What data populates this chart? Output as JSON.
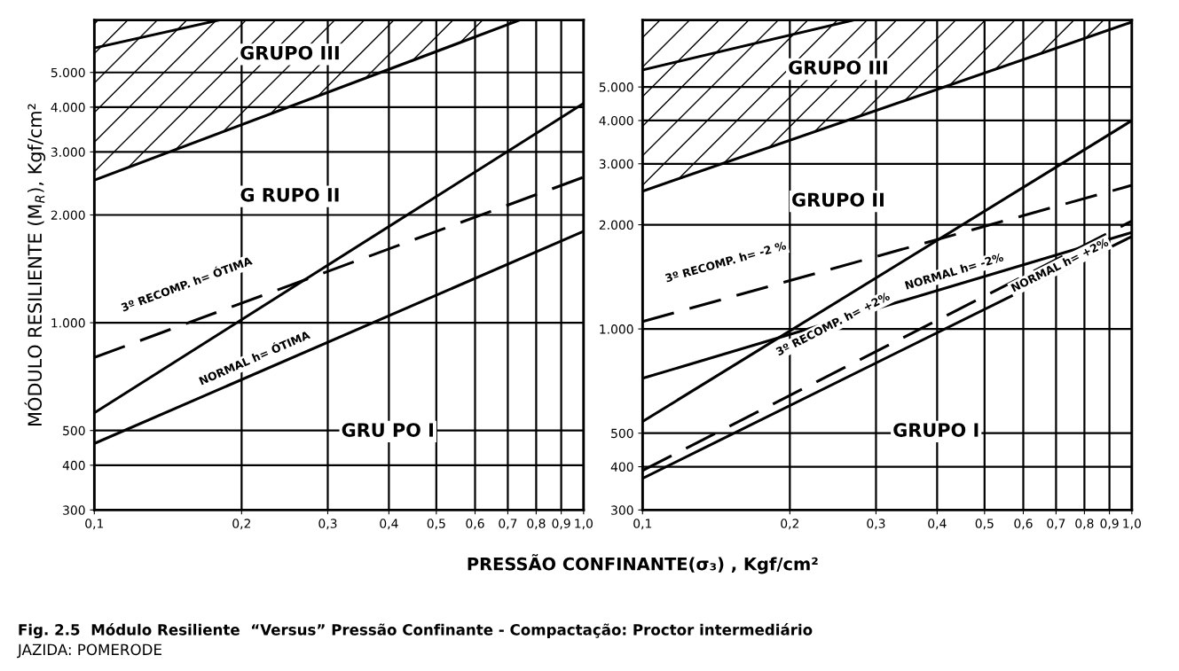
{
  "chart_data": [
    {
      "type": "line",
      "log": "xy",
      "grid": true,
      "ylabel": "MÓDULO RESILIENTE (M$_{R}$), Kgf/cm²",
      "xlim": [
        0.1,
        1.0
      ],
      "ylim": [
        300,
        7000
      ],
      "xticks": [
        {
          "value": 0.1,
          "label": "0,1"
        },
        {
          "value": 0.2,
          "label": "0,2"
        },
        {
          "value": 0.3,
          "label": "0,3"
        },
        {
          "value": 0.4,
          "label": "0,4"
        },
        {
          "value": 0.5,
          "label": "0,5"
        },
        {
          "value": 0.6,
          "label": "0,6"
        },
        {
          "value": 0.7,
          "label": "0,7"
        },
        {
          "value": 0.8,
          "label": "0,8"
        },
        {
          "value": 0.9,
          "label": "0,9"
        },
        {
          "value": 1.0,
          "label": "1,0"
        }
      ],
      "yticks": [
        300,
        400,
        500,
        {
          "value": 1000,
          "label": "1.000"
        },
        {
          "value": 2000,
          "label": "2.000"
        },
        {
          "value": 3000,
          "label": "3.000"
        },
        {
          "value": 4000,
          "label": "4.000"
        },
        {
          "value": 5000,
          "label": "5.000"
        }
      ],
      "series": [
        {
          "color": "#000000",
          "x": [
            0.1,
            0.18
          ],
          "values": [
            5850,
            7000
          ]
        },
        {
          "color": "#000000",
          "x": [
            0.1,
            0.74
          ],
          "values": [
            2500,
            7000
          ],
          "lower": [
            2500,
            7000
          ],
          "upper": [
            7000,
            7000
          ]
        },
        {
          "color": "#000000",
          "x": [
            0.1,
            1.0
          ],
          "values": [
            560,
            4100
          ]
        },
        {
          "color": "#000000",
          "x": [
            0.1,
            1.0
          ],
          "values": [
            800,
            2550
          ],
          "line_style": "dashed"
        },
        {
          "color": "#000000",
          "x": [
            0.1,
            1.0
          ],
          "values": [
            460,
            1800
          ]
        }
      ],
      "annotations": [
        "GRUPO III",
        "G RUPO II",
        "GRU PO I",
        "3º RECOMP. h= ÓTIMA",
        "NORMAL h= ÓTIMA",
        "Fig. 2.5  Módulo Resiliente  “Versus” Pressão Confinante - Compactação: Proctor intermediário",
        "JAZIDA: POMERODE"
      ]
    },
    {
      "type": "line",
      "log": "xy",
      "grid": true,
      "xlabel": "PRESSÃO CONFINANTE(σ₃) , Kgf/cm²",
      "xlim": [
        0.1,
        1.0
      ],
      "ylim": [
        300,
        7800
      ],
      "xticks": [
        {
          "value": 0.1,
          "label": "0,1"
        },
        {
          "value": 0.2,
          "label": "0,2"
        },
        {
          "value": 0.3,
          "label": "0,3"
        },
        {
          "value": 0.4,
          "label": "0,4"
        },
        {
          "value": 0.5,
          "label": "0,5"
        },
        {
          "value": 0.6,
          "label": "0,6"
        },
        {
          "value": 0.7,
          "label": "0,7"
        },
        {
          "value": 0.8,
          "label": "0,8"
        },
        {
          "value": 0.9,
          "label": "0,9"
        },
        {
          "value": 1.0,
          "label": "1,0"
        }
      ],
      "yticks": [
        300,
        400,
        500,
        {
          "value": 1000,
          "label": "1.000"
        },
        {
          "value": 2000,
          "label": "2.000"
        },
        {
          "value": 3000,
          "label": "3.000"
        },
        {
          "value": 4000,
          "label": "4.000"
        },
        {
          "value": 5000,
          "label": "5.000"
        }
      ],
      "series": [
        {
          "color": "#000000",
          "x": [
            0.1,
            0.27
          ],
          "values": [
            5600,
            7800
          ]
        },
        {
          "color": "#000000",
          "x": [
            0.1,
            1.0
          ],
          "values": [
            2500,
            7700
          ],
          "lower": [
            2500,
            7700
          ],
          "upper": [
            7800,
            7800
          ]
        },
        {
          "color": "#000000",
          "x": [
            0.1,
            1.0
          ],
          "values": [
            540,
            4000
          ]
        },
        {
          "color": "#000000",
          "x": [
            0.1,
            1.0
          ],
          "values": [
            1050,
            2600
          ],
          "line_style": "dashed"
        },
        {
          "color": "#000000",
          "x": [
            0.1,
            1.0
          ],
          "values": [
            720,
            1900
          ]
        },
        {
          "color": "#000000",
          "x": [
            0.1,
            1.0
          ],
          "values": [
            390,
            2050
          ],
          "line_style": "dashed"
        },
        {
          "color": "#000000",
          "x": [
            0.1,
            1.0
          ],
          "values": [
            370,
            1850
          ]
        }
      ],
      "annotations": [
        "GRUPO III",
        "GRUPO II",
        "GRUPO I",
        "3º RECOMP. h= -2 %",
        "NORMAL h= -2%",
        "3º RECOMP. h= +2%",
        "NORMAL h= +2%"
      ]
    }
  ]
}
